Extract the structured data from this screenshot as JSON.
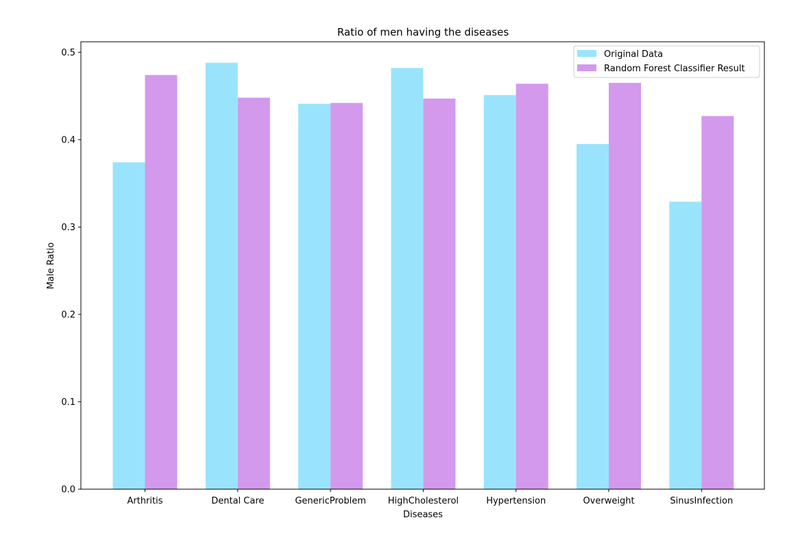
{
  "chart_data": {
    "type": "bar",
    "title": "Ratio of men having the diseases",
    "xlabel": "Diseases",
    "ylabel": "Male Ratio",
    "categories": [
      "Arthritis",
      "Dental Care",
      "GenericProblem",
      "HighCholesterol",
      "Hypertension",
      "Overweight",
      "SinusInfection"
    ],
    "series": [
      {
        "name": "Original Data",
        "color": "#99e4fc",
        "values": [
          0.374,
          0.488,
          0.441,
          0.482,
          0.451,
          0.395,
          0.329
        ]
      },
      {
        "name": "Random Forest Classifier Result",
        "color": "#d399ed",
        "values": [
          0.474,
          0.448,
          0.442,
          0.447,
          0.464,
          0.465,
          0.427
        ]
      }
    ],
    "ylim": [
      0,
      0.512
    ],
    "yticks": [
      "0.0",
      "0.1",
      "0.2",
      "0.3",
      "0.4",
      "0.5"
    ],
    "grid": false,
    "legend_position": "top-right"
  }
}
